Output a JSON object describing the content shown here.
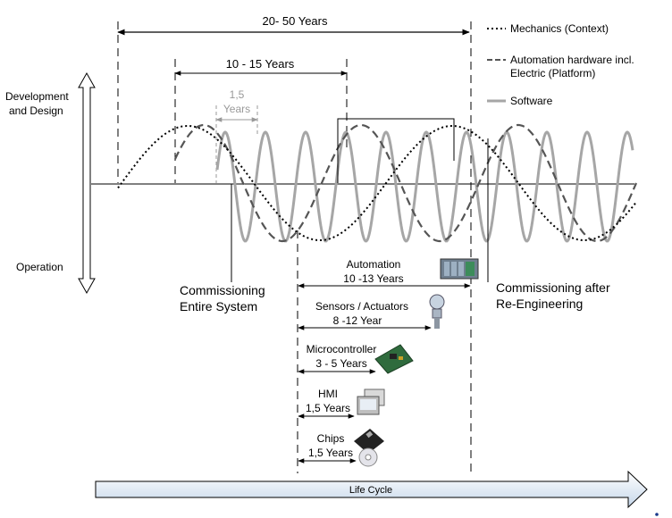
{
  "top_span": {
    "label": "20- 50 Years"
  },
  "mid_span": {
    "label": "10 - 15 Years"
  },
  "small_span": {
    "line1": "1,5",
    "line2": "Years"
  },
  "legend": {
    "mechanics": "Mechanics (Context)",
    "automation_line1": "Automation hardware incl.",
    "automation_line2": "Electric (Platform)",
    "software": "Software"
  },
  "left_axis": {
    "top_line1": "Development",
    "top_line2": "and Design",
    "bottom": "Operation"
  },
  "commissioning_left": {
    "line1": "Commissioning",
    "line2": "Entire System"
  },
  "commissioning_right": {
    "line1": "Commissioning after",
    "line2": "Re-Engineering"
  },
  "components": {
    "automation": {
      "label": "Automation",
      "years": "10 -13 Years"
    },
    "sensors": {
      "label": "Sensors / Actuators",
      "years": "8 -12 Year"
    },
    "microcontroller": {
      "label": "Microcontroller",
      "years": "3 - 5 Years"
    },
    "hmi": {
      "label": "HMI",
      "years": "1,5 Years"
    },
    "chips": {
      "label": "Chips",
      "years": "1,5 Years"
    }
  },
  "life_cycle": {
    "label": "Life Cycle"
  },
  "colors": {
    "mechanics": "#000000",
    "automation_hw": "#555555",
    "software": "#a6a6a6",
    "lifecycle_fill_start": "#ffffff",
    "lifecycle_fill_end": "#c5d6ea"
  }
}
